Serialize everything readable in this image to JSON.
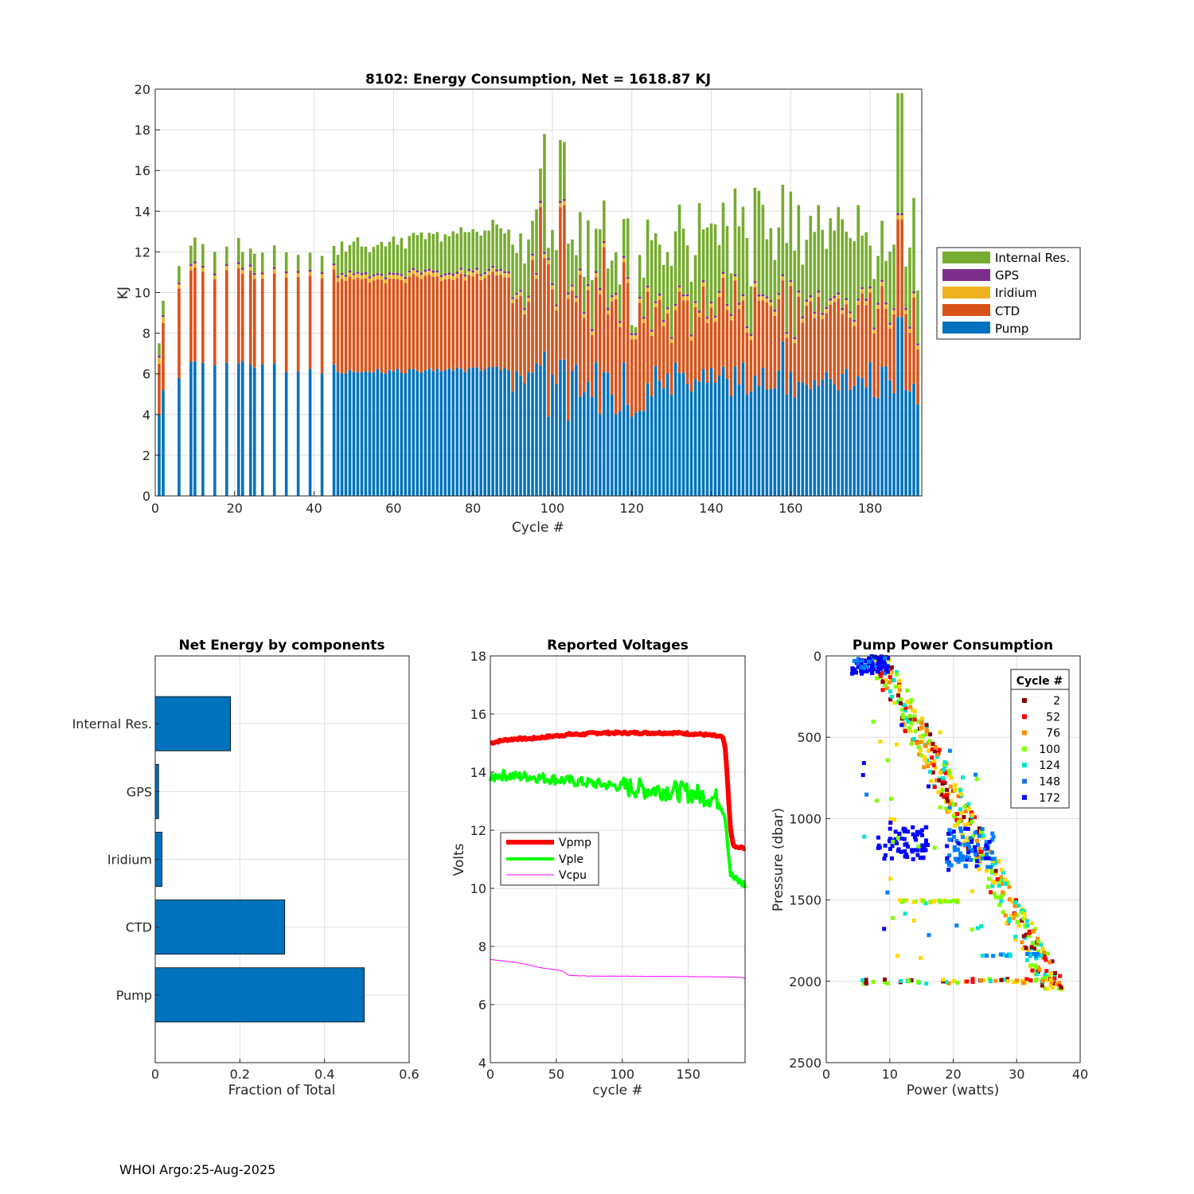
{
  "footer": "WHOI Argo:25-Aug-2025",
  "colors": {
    "pump": "#0072BD",
    "ctd": "#D95319",
    "iridium": "#EDB120",
    "gps": "#7E2F8E",
    "internal": "#77AC30",
    "vpmp": "#ff0000",
    "vple": "#00ff00",
    "vcpu": "#ff00ff"
  },
  "chart_data": [
    {
      "type": "bar",
      "stacked": true,
      "title": "8102: Energy Consumption,  Net = 1618.87 KJ",
      "xlabel": "Cycle #",
      "ylabel": "KJ",
      "xlim": [
        0,
        193
      ],
      "ylim": [
        0,
        20
      ],
      "xticks": [
        0,
        20,
        40,
        60,
        80,
        100,
        120,
        140,
        160,
        180
      ],
      "yticks": [
        0,
        2,
        4,
        6,
        8,
        10,
        12,
        14,
        16,
        18,
        20
      ],
      "legend": [
        "Internal Res.",
        "GPS",
        "Iridium",
        "CTD",
        "Pump"
      ],
      "legend_position": "east-outside",
      "components_order": [
        "Pump",
        "CTD",
        "Iridium",
        "GPS",
        "Internal Res."
      ],
      "sample_cycles": [
        {
          "cycle": 1,
          "pump": 4.0,
          "ctd": 2.5,
          "iridium": 0.3,
          "gps": 0.1,
          "internal": 0.6
        },
        {
          "cycle": 2,
          "pump": 5.2,
          "ctd": 3.3,
          "iridium": 0.3,
          "gps": 0.1,
          "internal": 0.7
        },
        {
          "cycle": 6,
          "pump": 5.8,
          "ctd": 4.4,
          "iridium": 0.2,
          "gps": 0.1,
          "internal": 0.8
        },
        {
          "cycle": 9,
          "pump": 6.6,
          "ctd": 4.5,
          "iridium": 0.2,
          "gps": 0.1,
          "internal": 0.9
        },
        {
          "cycle": 44,
          "pump": 5.9,
          "ctd": 4.3,
          "iridium": 0.2,
          "gps": 0.1,
          "internal": 0.9
        },
        {
          "cycle": 98,
          "pump": 7.1,
          "ctd": 4.6,
          "iridium": 0.2,
          "gps": 0.1,
          "internal": 5.8
        },
        {
          "cycle": 103,
          "pump": 6.7,
          "ctd": 7.6,
          "iridium": 0.2,
          "gps": 0.1,
          "internal": 2.8
        },
        {
          "cycle": 188,
          "pump": 8.8,
          "ctd": 4.8,
          "iridium": 0.2,
          "gps": 0.1,
          "internal": 5.9
        },
        {
          "cycle": 192,
          "pump": 4.5,
          "ctd": 2.7,
          "iridium": 0.2,
          "gps": 0.1,
          "internal": 2.6
        }
      ]
    },
    {
      "type": "bar",
      "orientation": "horizontal",
      "title": "Net Energy by components",
      "xlabel": "Fraction of Total",
      "ylabel": "",
      "xlim": [
        0,
        0.6
      ],
      "xticks": [
        0,
        0.2,
        0.4,
        0.6
      ],
      "categories": [
        "Internal Res.",
        "GPS",
        "Iridium",
        "CTD",
        "Pump"
      ],
      "values": [
        0.178,
        0.008,
        0.016,
        0.306,
        0.494
      ]
    },
    {
      "type": "line",
      "title": "Reported Voltages",
      "xlabel": "cycle #",
      "ylabel": "Volts",
      "xlim": [
        0,
        193
      ],
      "ylim": [
        4,
        18
      ],
      "xticks": [
        0,
        50,
        100,
        150
      ],
      "yticks": [
        4,
        6,
        8,
        10,
        12,
        14,
        16,
        18
      ],
      "legend_position": "west",
      "series": [
        {
          "name": "Vpmp",
          "x": [
            0,
            10,
            20,
            30,
            40,
            50,
            60,
            70,
            80,
            90,
            100,
            120,
            140,
            160,
            170,
            176,
            178,
            180,
            182,
            184,
            186,
            193
          ],
          "y": [
            15.0,
            15.1,
            15.15,
            15.15,
            15.2,
            15.25,
            15.3,
            15.3,
            15.35,
            15.35,
            15.35,
            15.35,
            15.35,
            15.3,
            15.25,
            15.2,
            14.8,
            13.5,
            12.0,
            11.5,
            11.4,
            11.4
          ]
        },
        {
          "name": "Vple",
          "x": [
            0,
            5,
            10,
            20,
            30,
            40,
            50,
            60,
            70,
            80,
            90,
            100,
            110,
            120,
            130,
            140,
            150,
            160,
            170,
            175,
            178,
            180,
            182,
            185,
            190,
            193
          ],
          "y": [
            13.7,
            13.9,
            13.9,
            13.85,
            13.85,
            13.8,
            13.75,
            13.7,
            13.65,
            13.6,
            13.55,
            13.5,
            13.45,
            13.4,
            13.4,
            13.35,
            13.3,
            13.2,
            13.1,
            13.0,
            12.5,
            11.5,
            10.5,
            10.3,
            10.2,
            10.1
          ]
        },
        {
          "name": "Vcpu",
          "x": [
            0,
            10,
            20,
            30,
            40,
            50,
            55,
            58,
            60,
            80,
            100,
            120,
            140,
            160,
            180,
            190,
            193
          ],
          "y": [
            7.55,
            7.5,
            7.45,
            7.35,
            7.25,
            7.2,
            7.15,
            7.05,
            7.0,
            6.98,
            6.98,
            6.97,
            6.97,
            6.96,
            6.95,
            6.93,
            6.9
          ]
        }
      ]
    },
    {
      "type": "scatter",
      "title": "Pump Power Consumption",
      "xlabel": "Power (watts)",
      "ylabel": "Pressure (dbar)",
      "xlim": [
        0,
        40
      ],
      "ylim": [
        0,
        2500
      ],
      "y_reversed": true,
      "xticks": [
        0,
        10,
        20,
        30,
        40
      ],
      "yticks": [
        0,
        500,
        1000,
        1500,
        2000,
        2500
      ],
      "legend_title": "Cycle #",
      "legend_position": "top-right",
      "series": [
        {
          "name": "2",
          "color": "#8b0000",
          "cycle": 2
        },
        {
          "name": "52",
          "color": "#ff0000",
          "cycle": 52
        },
        {
          "name": "76",
          "color": "#ff8c00",
          "cycle": 76
        },
        {
          "name": "100",
          "color": "#7fff00",
          "cycle": 100
        },
        {
          "name": "124",
          "color": "#00e5cc",
          "cycle": 124
        },
        {
          "name": "148",
          "color": "#1e6fe0",
          "cycle": 148
        },
        {
          "name": "172",
          "color": "#0000ff",
          "cycle": 172
        }
      ]
    }
  ]
}
